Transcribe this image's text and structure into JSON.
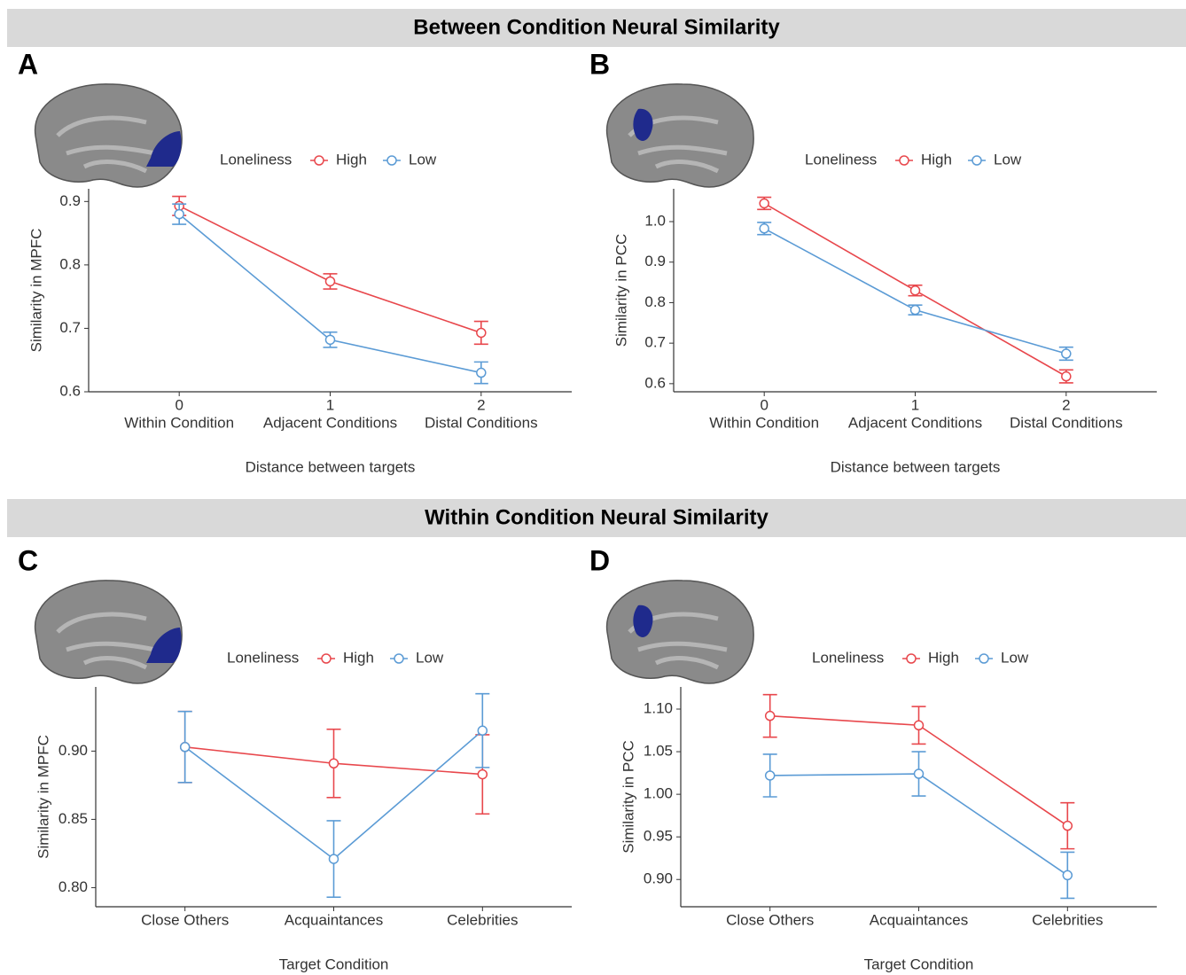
{
  "sections": [
    "Between Condition Neural Similarity",
    "Within Condition Neural Similarity"
  ],
  "chart_data": [
    {
      "panel": "A",
      "type": "line",
      "ylabel": "Similarity in MPFC",
      "xlabel": "Distance between targets",
      "legend_title": "Loneliness",
      "x": [
        0,
        1,
        2
      ],
      "categories": [
        "Within Condition",
        "Adjacent Conditions",
        "Distal Conditions"
      ],
      "xlim": [
        -0.6,
        2.6
      ],
      "xticks": [
        0,
        1,
        2
      ],
      "ylim": [
        0.6,
        0.92
      ],
      "yticks": [
        0.6,
        0.7,
        0.8,
        0.9
      ],
      "series": [
        {
          "name": "High",
          "color": "#e8474c",
          "values": [
            0.893,
            0.774,
            0.693
          ],
          "errors": [
            0.015,
            0.012,
            0.018
          ]
        },
        {
          "name": "Low",
          "color": "#5b9bd5",
          "values": [
            0.88,
            0.682,
            0.63
          ],
          "errors": [
            0.016,
            0.012,
            0.017
          ]
        }
      ]
    },
    {
      "panel": "B",
      "type": "line",
      "ylabel": "Similarity in PCC",
      "xlabel": "Distance between targets",
      "legend_title": "Loneliness",
      "x": [
        0,
        1,
        2
      ],
      "categories": [
        "Within Condition",
        "Adjacent Conditions",
        "Distal Conditions"
      ],
      "xlim": [
        -0.6,
        2.6
      ],
      "xticks": [
        0,
        1,
        2
      ],
      "ylim": [
        0.58,
        1.081
      ],
      "yticks": [
        0.6,
        0.7,
        0.8,
        0.9,
        {
          "value": 1.0,
          "label": "1.0"
        }
      ],
      "series": [
        {
          "name": "High",
          "color": "#e8474c",
          "values": [
            1.045,
            0.83,
            0.618
          ],
          "errors": [
            0.015,
            0.013,
            0.016
          ]
        },
        {
          "name": "Low",
          "color": "#5b9bd5",
          "values": [
            0.983,
            0.782,
            0.674
          ],
          "errors": [
            0.015,
            0.012,
            0.016
          ]
        }
      ]
    },
    {
      "panel": "C",
      "type": "line",
      "ylabel": "Similarity in MPFC",
      "xlabel": "Target Condition",
      "legend_title": "Loneliness",
      "categories": [
        "Close Others",
        "Acquaintances",
        "Celebrities"
      ],
      "ylim": [
        0.786,
        0.947
      ],
      "yticks": [
        {
          "value": 0.8,
          "label": "0.80"
        },
        0.85,
        {
          "value": 0.9,
          "label": "0.90"
        }
      ],
      "series": [
        {
          "name": "High",
          "color": "#e8474c",
          "values": [
            0.903,
            0.891,
            0.883
          ],
          "errors": [
            0.026,
            0.025,
            0.029
          ]
        },
        {
          "name": "Low",
          "color": "#5b9bd5",
          "values": [
            0.903,
            0.821,
            0.915
          ],
          "errors": [
            0.026,
            0.028,
            0.027
          ]
        }
      ]
    },
    {
      "panel": "D",
      "type": "line",
      "ylabel": "Similarity in PCC",
      "xlabel": "Target Condition",
      "legend_title": "Loneliness",
      "categories": [
        "Close Others",
        "Acquaintances",
        "Celebrities"
      ],
      "ylim": [
        0.868,
        1.126
      ],
      "yticks": [
        {
          "value": 0.9,
          "label": "0.90"
        },
        0.95,
        {
          "value": 1.0,
          "label": "1.00"
        },
        1.05,
        {
          "value": 1.1,
          "label": "1.10"
        }
      ],
      "series": [
        {
          "name": "High",
          "color": "#e8474c",
          "values": [
            1.092,
            1.081,
            0.963
          ],
          "errors": [
            0.025,
            0.022,
            0.027
          ]
        },
        {
          "name": "Low",
          "color": "#5b9bd5",
          "values": [
            1.022,
            1.024,
            0.905
          ],
          "errors": [
            0.025,
            0.026,
            0.027
          ]
        }
      ]
    }
  ]
}
